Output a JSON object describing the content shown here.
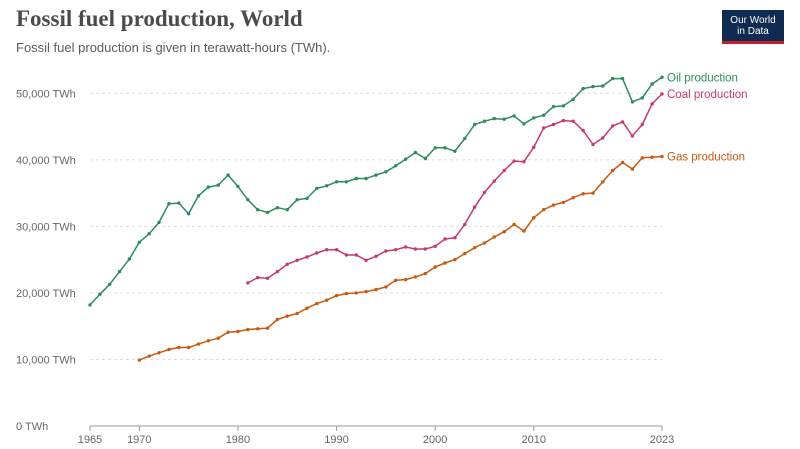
{
  "header": {
    "title": "Fossil fuel production, World",
    "subtitle": "Fossil fuel production is given in terawatt-hours (TWh).",
    "logo_line1": "Our World",
    "logo_line2": "in Data"
  },
  "chart_data": {
    "type": "line",
    "title": "Fossil fuel production, World",
    "subtitle": "Fossil fuel production is given in terawatt-hours (TWh).",
    "ylabel": "",
    "xlabel": "",
    "xlim": [
      1965,
      2023
    ],
    "ylim": [
      0,
      55000
    ],
    "x_ticks": [
      {
        "value": 1965,
        "label": "1965"
      },
      {
        "value": 1970,
        "label": "1970"
      },
      {
        "value": 1980,
        "label": "1980"
      },
      {
        "value": 1990,
        "label": "1990"
      },
      {
        "value": 2000,
        "label": "2000"
      },
      {
        "value": 2010,
        "label": "2010"
      },
      {
        "value": 2023,
        "label": "2023"
      }
    ],
    "y_ticks": [
      {
        "value": 0,
        "label": "0 TWh"
      },
      {
        "value": 10000,
        "label": "10,000 TWh"
      },
      {
        "value": 20000,
        "label": "20,000 TWh"
      },
      {
        "value": 30000,
        "label": "30,000 TWh"
      },
      {
        "value": 40000,
        "label": "40,000 TWh"
      },
      {
        "value": 50000,
        "label": "50,000 TWh"
      }
    ],
    "grid": "horizontal dashed",
    "legend": "inline labels at line ends",
    "series": [
      {
        "name": "Oil production",
        "color": "#2e8b5e",
        "x": [
          1965,
          1966,
          1967,
          1968,
          1969,
          1970,
          1971,
          1972,
          1973,
          1974,
          1975,
          1976,
          1977,
          1978,
          1979,
          1980,
          1981,
          1982,
          1983,
          1984,
          1985,
          1986,
          1987,
          1988,
          1989,
          1990,
          1991,
          1992,
          1993,
          1994,
          1995,
          1996,
          1997,
          1998,
          1999,
          2000,
          2001,
          2002,
          2003,
          2004,
          2005,
          2006,
          2007,
          2008,
          2009,
          2010,
          2011,
          2012,
          2013,
          2014,
          2015,
          2016,
          2017,
          2018,
          2019,
          2020,
          2021,
          2022,
          2023
        ],
        "values": [
          18200,
          19800,
          21300,
          23200,
          25100,
          27600,
          28900,
          30600,
          33400,
          33500,
          31900,
          34600,
          35900,
          36200,
          37700,
          36000,
          34000,
          32500,
          32100,
          32800,
          32500,
          34000,
          34200,
          35700,
          36100,
          36700,
          36700,
          37200,
          37200,
          37700,
          38200,
          39100,
          40100,
          41100,
          40200,
          41800,
          41800,
          41300,
          43200,
          45300,
          45800,
          46200,
          46100,
          46600,
          45400,
          46300,
          46700,
          48000,
          48100,
          49100,
          50700,
          51000,
          51100,
          52200,
          52200,
          48700,
          49300,
          51400,
          52400
        ]
      },
      {
        "name": "Coal production",
        "color": "#c43a6b",
        "x": [
          1981,
          1982,
          1983,
          1984,
          1985,
          1986,
          1987,
          1988,
          1989,
          1990,
          1991,
          1992,
          1993,
          1994,
          1995,
          1996,
          1997,
          1998,
          1999,
          2000,
          2001,
          2002,
          2003,
          2004,
          2005,
          2006,
          2007,
          2008,
          2009,
          2010,
          2011,
          2012,
          2013,
          2014,
          2015,
          2016,
          2017,
          2018,
          2019,
          2020,
          2021,
          2022,
          2023
        ],
        "values": [
          21500,
          22300,
          22200,
          23200,
          24300,
          24900,
          25400,
          26000,
          26500,
          26500,
          25700,
          25700,
          24900,
          25500,
          26300,
          26500,
          26900,
          26600,
          26600,
          27000,
          28100,
          28300,
          30300,
          32900,
          35100,
          36800,
          38400,
          39800,
          39700,
          41900,
          44800,
          45300,
          45900,
          45800,
          44400,
          42300,
          43300,
          45100,
          45700,
          43600,
          45300,
          48400,
          49900
        ]
      },
      {
        "name": "Gas production",
        "color": "#c55a11",
        "x": [
          1970,
          1971,
          1972,
          1973,
          1974,
          1975,
          1976,
          1977,
          1978,
          1979,
          1980,
          1981,
          1982,
          1983,
          1984,
          1985,
          1986,
          1987,
          1988,
          1989,
          1990,
          1991,
          1992,
          1993,
          1994,
          1995,
          1996,
          1997,
          1998,
          1999,
          2000,
          2001,
          2002,
          2003,
          2004,
          2005,
          2006,
          2007,
          2008,
          2009,
          2010,
          2011,
          2012,
          2013,
          2014,
          2015,
          2016,
          2017,
          2018,
          2019,
          2020,
          2021,
          2022,
          2023
        ],
        "values": [
          9900,
          10500,
          11000,
          11500,
          11800,
          11800,
          12300,
          12800,
          13200,
          14100,
          14200,
          14500,
          14600,
          14700,
          16000,
          16500,
          16900,
          17700,
          18400,
          18900,
          19600,
          19900,
          20000,
          20200,
          20500,
          20900,
          21900,
          22000,
          22400,
          22900,
          23900,
          24500,
          25000,
          25900,
          26800,
          27500,
          28400,
          29200,
          30300,
          29300,
          31300,
          32500,
          33200,
          33600,
          34300,
          34900,
          35000,
          36700,
          38400,
          39600,
          38600,
          40300,
          40400,
          40500
        ]
      }
    ]
  }
}
